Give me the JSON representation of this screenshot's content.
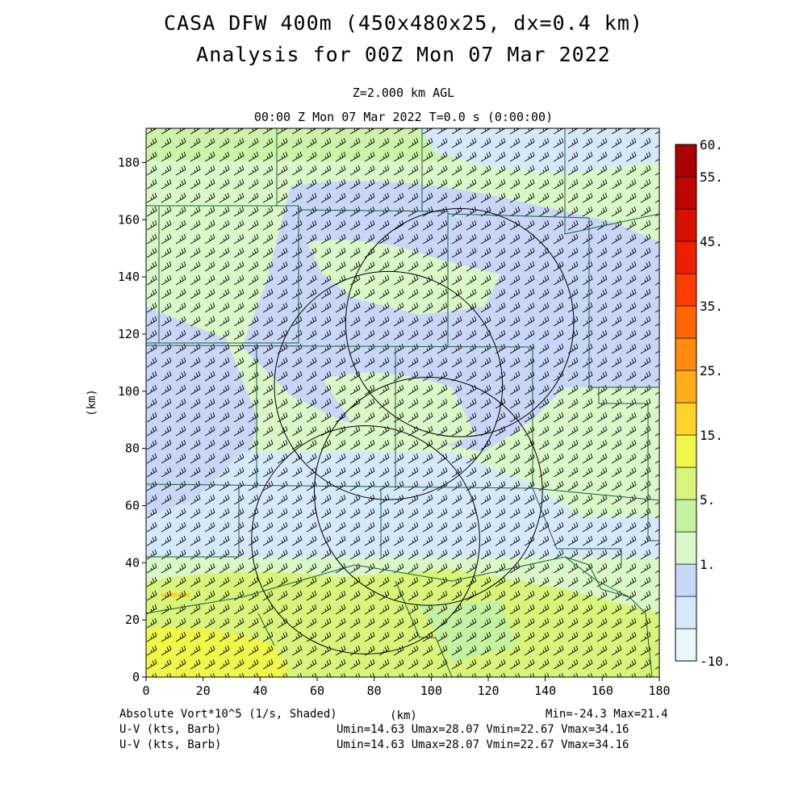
{
  "title_line1": "CASA DFW 400m (450x480x25, dx=0.4 km)",
  "title_line2": "Analysis for 00Z Mon 07 Mar 2022",
  "level_label": "Z=2.000 km AGL",
  "time_label": "00:00 Z Mon 07 Mar 2022   T=0.0 s (0:00:00)",
  "footer": {
    "field_label": "Absolute Vort*10^5 (1/s, Shaded)",
    "km_label": "(km)",
    "minmax": "Min=-24.3 Max=21.4",
    "barb_label_1": "U-V (kts, Barb)",
    "barb_stats_1": "Umin=14.63 Umax=28.07 Vmin=22.67 Vmax=34.16",
    "barb_label_2": "U-V (kts, Barb)",
    "barb_stats_2": "Umin=14.63 Umax=28.07 Vmin=22.67 Vmax=34.16"
  },
  "map": {
    "x_axis_label": "(km)",
    "y_axis_label": "(km)",
    "x_range": [
      0,
      180
    ],
    "y_range": [
      0,
      192
    ],
    "x_ticks": [
      "0",
      "20",
      "40",
      "60",
      "80",
      "100",
      "120",
      "140",
      "160",
      "180"
    ],
    "y_ticks": [
      "0",
      "20",
      "40",
      "60",
      "80",
      "100",
      "120",
      "140",
      "160",
      "180"
    ],
    "shaded_field": "Absolute Vorticity",
    "vector_field": "U-V wind barbs",
    "radar_circles_km": [
      {
        "cx": 77,
        "cy": 48,
        "r": 40
      },
      {
        "cx": 110,
        "cy": 124,
        "r": 40
      },
      {
        "cx": 85,
        "cy": 102,
        "r": 40
      },
      {
        "cx": 99,
        "cy": 65,
        "r": 40
      }
    ]
  },
  "colorbar": {
    "labels": [
      "60.",
      "55.",
      "45.",
      "35.",
      "25.",
      "15.",
      "5.",
      "1.",
      "-10."
    ],
    "colors": [
      "#e9f6fb",
      "#d6e9fb",
      "#c8d6f8",
      "#daf7c8",
      "#c4f2a0",
      "#d8f47a",
      "#eef74a",
      "#ffd328",
      "#ffae18",
      "#ff8a0c",
      "#ff6600",
      "#ff3c00",
      "#f01e00",
      "#d81000",
      "#c00400",
      "#aa0000"
    ]
  }
}
